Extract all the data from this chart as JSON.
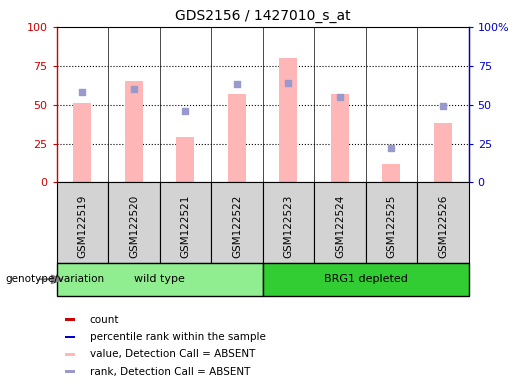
{
  "title": "GDS2156 / 1427010_s_at",
  "samples": [
    "GSM122519",
    "GSM122520",
    "GSM122521",
    "GSM122522",
    "GSM122523",
    "GSM122524",
    "GSM122525",
    "GSM122526"
  ],
  "bar_values": [
    51,
    65,
    29,
    57,
    80,
    57,
    12,
    38
  ],
  "dot_values": [
    58,
    60,
    46,
    63,
    64,
    55,
    22,
    49
  ],
  "groups": [
    {
      "label": "wild type",
      "start": 0,
      "end": 3,
      "color": "#90EE90"
    },
    {
      "label": "BRG1 depleted",
      "start": 4,
      "end": 7,
      "color": "#32CD32"
    }
  ],
  "group_label": "genotype/variation",
  "ylim": [
    0,
    100
  ],
  "yticks": [
    0,
    25,
    50,
    75,
    100
  ],
  "bar_color": "#FFB6B6",
  "dot_color": "#9999CC",
  "bar_width": 0.35,
  "left_axis_color": "#CC0000",
  "right_axis_color": "#0000CC",
  "legend_items": [
    {
      "label": "count",
      "color": "#CC0000"
    },
    {
      "label": "percentile rank within the sample",
      "color": "#0000CC"
    },
    {
      "label": "value, Detection Call = ABSENT",
      "color": "#FFB6B6"
    },
    {
      "label": "rank, Detection Call = ABSENT",
      "color": "#9999CC"
    }
  ]
}
